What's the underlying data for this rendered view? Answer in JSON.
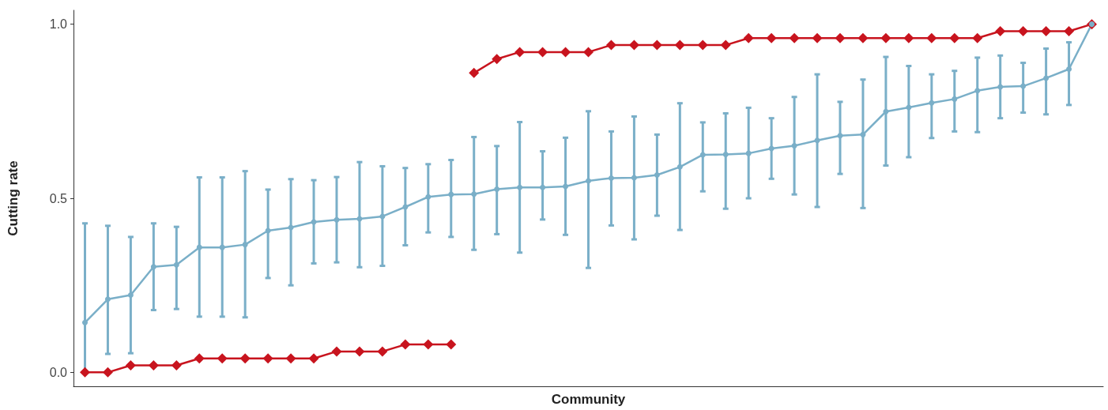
{
  "chart_data": {
    "type": "line",
    "xlabel": "Community",
    "ylabel": "Cutting rate",
    "categories": [
      null,
      null,
      null,
      null,
      null,
      null,
      null,
      null,
      null,
      null,
      null,
      null,
      null,
      null,
      null,
      null,
      null,
      null,
      null,
      null,
      null,
      null,
      null,
      null,
      null,
      null,
      null,
      null,
      null,
      null,
      null,
      null,
      null,
      null,
      null,
      null,
      null,
      null,
      null,
      null,
      null,
      null,
      null,
      null,
      null
    ],
    "ylim": [
      -0.04,
      1.04
    ],
    "yticks": [
      {
        "value": 0,
        "label": "0.0"
      },
      {
        "value": 0.5,
        "label": "0.5"
      },
      {
        "value": 1,
        "label": "1.0"
      }
    ],
    "tick_labels": "y",
    "grid": false,
    "series": [
      {
        "color": "#7aafc8",
        "marker": "circle",
        "values": [
          0.143,
          0.21,
          0.222,
          0.303,
          0.309,
          0.359,
          0.359,
          0.367,
          0.407,
          0.416,
          0.432,
          0.438,
          0.441,
          0.448,
          0.475,
          0.504,
          0.511,
          0.512,
          0.526,
          0.531,
          0.531,
          0.534,
          0.55,
          0.558,
          0.559,
          0.567,
          0.59,
          0.625,
          0.626,
          0.629,
          0.643,
          0.651,
          0.666,
          0.68,
          0.683,
          0.749,
          0.761,
          0.774,
          0.785,
          0.809,
          0.82,
          0.822,
          0.845,
          0.871,
          1.0
        ],
        "errors": [
          [
            0.0,
            0.428
          ],
          [
            0.053,
            0.421
          ],
          [
            0.055,
            0.389
          ],
          [
            0.179,
            0.428
          ],
          [
            0.182,
            0.418
          ],
          [
            0.16,
            0.56
          ],
          [
            0.16,
            0.56
          ],
          [
            0.158,
            0.578
          ],
          [
            0.271,
            0.525
          ],
          [
            0.25,
            0.555
          ],
          [
            0.313,
            0.552
          ],
          [
            0.316,
            0.561
          ],
          [
            0.302,
            0.604
          ],
          [
            0.306,
            0.592
          ],
          [
            0.365,
            0.587
          ],
          [
            0.402,
            0.598
          ],
          [
            0.389,
            0.61
          ],
          [
            0.352,
            0.676
          ],
          [
            0.397,
            0.65
          ],
          [
            0.344,
            0.719
          ],
          [
            0.439,
            0.635
          ],
          [
            0.395,
            0.674
          ],
          [
            0.3,
            0.75
          ],
          [
            0.422,
            0.692
          ],
          [
            0.382,
            0.735
          ],
          [
            0.45,
            0.683
          ],
          [
            0.409,
            0.773
          ],
          [
            0.52,
            0.718
          ],
          [
            0.47,
            0.744
          ],
          [
            0.5,
            0.76
          ],
          [
            0.556,
            0.73
          ],
          [
            0.511,
            0.791
          ],
          [
            0.475,
            0.856
          ],
          [
            0.57,
            0.777
          ],
          [
            0.472,
            0.841
          ],
          [
            0.594,
            0.906
          ],
          [
            0.618,
            0.88
          ],
          [
            0.673,
            0.856
          ],
          [
            0.692,
            0.866
          ],
          [
            0.69,
            0.904
          ],
          [
            0.73,
            0.91
          ],
          [
            0.746,
            0.889
          ],
          [
            0.741,
            0.93
          ],
          [
            0.768,
            0.948
          ],
          null
        ]
      },
      {
        "color": "#c8141e",
        "marker": "diamond",
        "values": [
          0,
          0,
          0.02,
          0.02,
          0.02,
          0.04,
          0.04,
          0.04,
          0.04,
          0.04,
          0.04,
          0.06,
          0.06,
          0.06,
          0.08,
          0.08,
          0.08,
          null,
          null,
          null,
          null,
          null,
          null,
          null,
          null,
          null,
          null,
          null,
          null,
          null,
          null,
          null,
          null,
          null,
          null,
          null,
          null,
          null,
          null,
          null,
          null,
          null,
          null,
          null,
          null
        ]
      },
      {
        "color": "#c8141e",
        "marker": "diamond",
        "values": [
          null,
          null,
          null,
          null,
          null,
          null,
          null,
          null,
          null,
          null,
          null,
          null,
          null,
          null,
          null,
          null,
          null,
          0.86,
          0.9,
          0.92,
          0.92,
          0.92,
          0.92,
          0.94,
          0.94,
          0.94,
          0.94,
          0.94,
          0.94,
          0.96,
          0.96,
          0.96,
          0.96,
          0.96,
          0.96,
          0.96,
          0.96,
          0.96,
          0.96,
          0.96,
          0.98,
          0.98,
          0.98,
          0.98,
          1.0
        ]
      }
    ]
  }
}
